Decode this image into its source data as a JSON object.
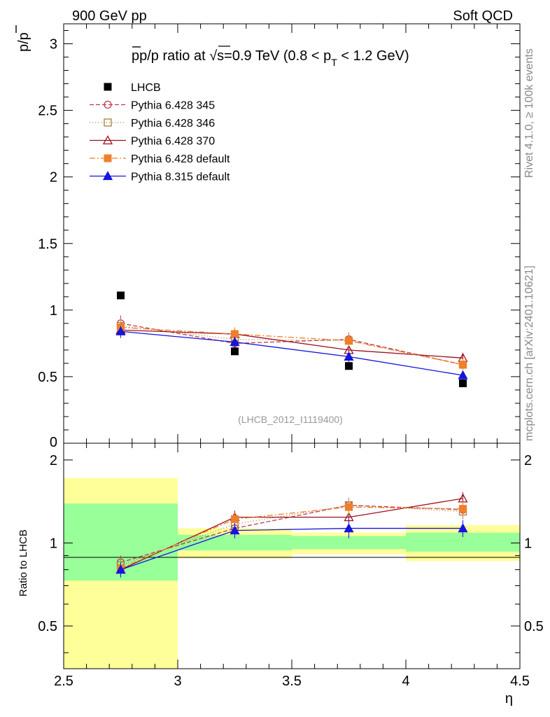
{
  "header": {
    "left": "900 GeV pp",
    "right": "Soft QCD",
    "side_top": "Rivet 4.1.0, ≥ 100k events",
    "side_bottom": "mcplots.cern.ch [arXiv:2401.10621]"
  },
  "chart_data": {
    "type": "line",
    "title": "p̅/p ratio at √s=0.9 TeV (0.8 < p_T < 1.2 GeV)",
    "title_parts": {
      "a": "p/p ratio at ",
      "b": "s=0.9 TeV (0.8 < p",
      "sub": "T",
      "c": " < 1.2 GeV)"
    },
    "analysis_id": "(LHCB_2012_I1119400)",
    "xlabel": "η",
    "ylabel": "p/p",
    "ratio_ylabel": "Ratio to LHCB",
    "xlim": [
      2.5,
      4.5
    ],
    "ylim": [
      0,
      3.15
    ],
    "ratio_ylim": [
      0.35,
      2.3
    ],
    "ratio_scale": "log",
    "x_ticks": [
      "2.5",
      "3",
      "3.5",
      "4",
      "4.5"
    ],
    "y_ticks": [
      "0.5",
      "1",
      "1.5",
      "2",
      "2.5",
      "3"
    ],
    "ratio_y_ticks": [
      "0.5",
      "1",
      "2"
    ],
    "bins": [
      [
        2.5,
        3.0
      ],
      [
        3.0,
        3.5
      ],
      [
        3.5,
        4.0
      ],
      [
        4.0,
        4.5
      ]
    ],
    "x": [
      2.75,
      3.25,
      3.75,
      4.25
    ],
    "data": {
      "name": "LHCB",
      "values": [
        1.11,
        0.69,
        0.58,
        0.45
      ],
      "band_inner": [
        [
          0.73,
          1.39
        ],
        [
          0.94,
          1.07
        ],
        [
          0.95,
          1.06
        ],
        [
          0.93,
          1.09
        ]
      ],
      "band_outer": [
        [
          0.35,
          1.72
        ],
        [
          0.88,
          1.13
        ],
        [
          0.91,
          1.09
        ],
        [
          0.86,
          1.16
        ]
      ]
    },
    "series": [
      {
        "name": "Pythia 6.428 345",
        "values": [
          0.9,
          0.75,
          0.78,
          0.59
        ],
        "errors": [
          0.06,
          0.05,
          0.05,
          0.04
        ],
        "color": "#c0394f",
        "marker": "circle-open",
        "dash": "6,3"
      },
      {
        "name": "Pythia 6.428 346",
        "values": [
          0.88,
          0.78,
          0.77,
          0.59
        ],
        "errors": [
          0.06,
          0.05,
          0.05,
          0.04
        ],
        "color": "#a0823a",
        "marker": "square-open",
        "dash": "1,3"
      },
      {
        "name": "Pythia 6.428 370",
        "values": [
          0.85,
          0.82,
          0.7,
          0.64
        ],
        "errors": [
          0.06,
          0.05,
          0.05,
          0.04
        ],
        "color": "#9b111e",
        "marker": "triangle-open",
        "dash": ""
      },
      {
        "name": "Pythia 6.428 default",
        "values": [
          0.87,
          0.82,
          0.77,
          0.59
        ],
        "errors": [
          0.06,
          0.05,
          0.05,
          0.04
        ],
        "color": "#f07f2a",
        "marker": "square-filled",
        "dash": "8,3,2,3"
      },
      {
        "name": "Pythia 8.315 default",
        "values": [
          0.84,
          0.76,
          0.65,
          0.51
        ],
        "errors": [
          0.04,
          0.04,
          0.04,
          0.03
        ],
        "color": "#1515dd",
        "marker": "triangle-filled",
        "dash": ""
      }
    ],
    "ratio_series": [
      [
        0.85,
        1.13,
        1.37,
        1.32
      ],
      [
        0.83,
        1.17,
        1.37,
        1.3
      ],
      [
        0.8,
        1.24,
        1.24,
        1.45
      ],
      [
        0.81,
        1.22,
        1.35,
        1.33
      ],
      [
        0.8,
        1.11,
        1.13,
        1.13
      ]
    ],
    "ratio_errors": [
      0.05,
      0.07,
      0.09,
      0.08
    ]
  }
}
